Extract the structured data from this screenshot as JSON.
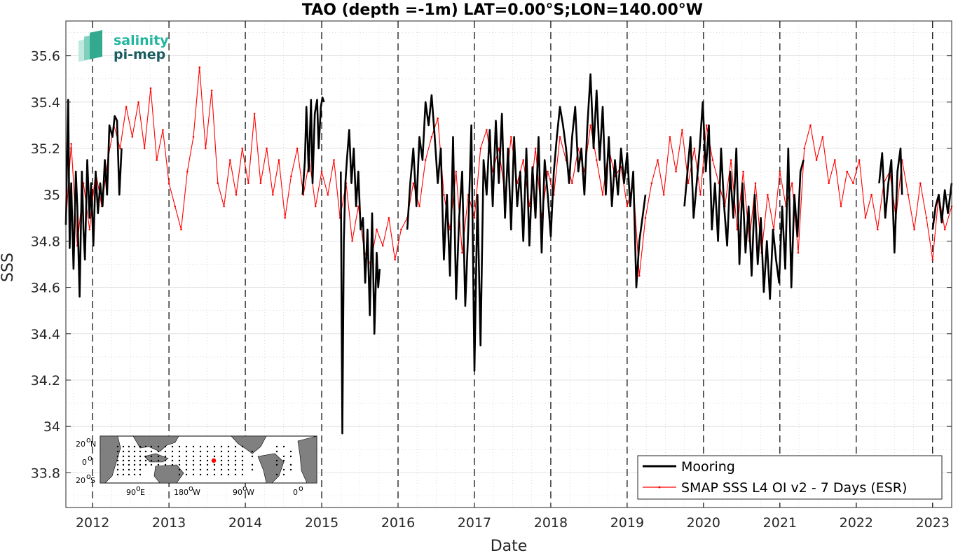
{
  "chart_data": {
    "type": "line",
    "title": "TAO (depth =-1m) LAT=0.00°S;LON=140.00°W",
    "xlabel": "Date",
    "ylabel": "SSS",
    "xlim": [
      2011.65,
      2023.25
    ],
    "ylim": [
      33.65,
      35.75
    ],
    "x_ticks": [
      "2012",
      "2013",
      "2014",
      "2015",
      "2016",
      "2017",
      "2018",
      "2019",
      "2020",
      "2021",
      "2022",
      "2023"
    ],
    "y_ticks": [
      "33.8",
      "34",
      "34.2",
      "34.4",
      "34.6",
      "34.8",
      "35",
      "35.2",
      "35.4",
      "35.6"
    ],
    "year_boundaries": [
      2012,
      2013,
      2014,
      2015,
      2016,
      2017,
      2018,
      2019,
      2020,
      2021,
      2022,
      2023
    ],
    "grid": true,
    "legend_position": "bottom-right",
    "colors": {
      "mooring": "#000000",
      "smap": "#ff0000"
    },
    "series": [
      {
        "name": "Mooring",
        "segments": [
          {
            "x": [
              2011.65,
              2011.68,
              2011.7,
              2011.72,
              2011.75,
              2011.78,
              2011.8,
              2011.83,
              2011.86,
              2011.88,
              2011.9,
              2011.93,
              2011.96,
              2011.98,
              2012.01,
              2012.04,
              2012.07,
              2012.1,
              2012.13,
              2012.16,
              2012.19,
              2012.22,
              2012.26,
              2012.29,
              2012.32,
              2012.35,
              2012.38
            ],
            "y": [
              34.87,
              35.41,
              34.77,
              35.05,
              34.68,
              35.1,
              34.95,
              34.56,
              35.1,
              34.85,
              34.72,
              35.15,
              34.9,
              35.05,
              34.78,
              35.1,
              34.92,
              35.05,
              34.95,
              35.15,
              35.0,
              35.3,
              35.25,
              35.34,
              35.32,
              35.0,
              35.2
            ]
          },
          {
            "x": [
              2014.75,
              2014.78,
              2014.8,
              2014.83,
              2014.86,
              2014.88,
              2014.91,
              2014.94,
              2014.96,
              2014.99,
              2015.01,
              2015.03
            ],
            "y": [
              35.0,
              35.15,
              35.38,
              35.1,
              35.41,
              35.05,
              35.35,
              35.41,
              35.2,
              35.38,
              35.42,
              35.4
            ]
          },
          {
            "x": [
              2015.25,
              2015.27,
              2015.29,
              2015.31,
              2015.33,
              2015.36,
              2015.39,
              2015.42,
              2015.45,
              2015.48,
              2015.51,
              2015.54,
              2015.57,
              2015.6,
              2015.63,
              2015.66,
              2015.69,
              2015.72,
              2015.74,
              2015.76
            ],
            "y": [
              35.1,
              33.97,
              34.8,
              35.05,
              35.15,
              35.28,
              35.05,
              35.2,
              34.95,
              35.1,
              34.85,
              34.9,
              34.62,
              34.85,
              34.48,
              34.92,
              34.4,
              34.75,
              34.6,
              34.68
            ]
          },
          {
            "x": [
              2016.12,
              2016.16,
              2016.2,
              2016.24,
              2016.28,
              2016.32,
              2016.36,
              2016.4,
              2016.44,
              2016.48,
              2016.52,
              2016.56,
              2016.6,
              2016.64,
              2016.68,
              2016.72,
              2016.76,
              2016.8,
              2016.84,
              2016.88,
              2016.92,
              2016.96,
              2017.0,
              2017.04,
              2017.08,
              2017.12,
              2017.16,
              2017.2,
              2017.24,
              2017.28,
              2017.32,
              2017.36,
              2017.4,
              2017.44,
              2017.48,
              2017.52,
              2017.56,
              2017.6,
              2017.64,
              2017.68,
              2017.72,
              2017.76,
              2017.8,
              2017.84,
              2017.88,
              2017.92,
              2017.96,
              2018.0,
              2018.04,
              2018.08,
              2018.12,
              2018.16,
              2018.2,
              2018.24,
              2018.28,
              2018.32,
              2018.36,
              2018.4,
              2018.44,
              2018.48,
              2018.52,
              2018.56,
              2018.6,
              2018.64,
              2018.68,
              2018.72,
              2018.76,
              2018.8,
              2018.84,
              2018.88,
              2018.92,
              2018.96,
              2019.0,
              2019.04,
              2019.08,
              2019.12,
              2019.16,
              2019.2,
              2019.24
            ],
            "y": [
              34.85,
              35.05,
              35.2,
              34.95,
              35.25,
              35.15,
              35.4,
              35.3,
              35.43,
              35.25,
              35.05,
              35.2,
              34.72,
              35.0,
              34.65,
              35.25,
              34.55,
              34.9,
              35.1,
              34.52,
              34.85,
              35.3,
              34.24,
              35.0,
              34.35,
              35.15,
              35.0,
              35.28,
              34.95,
              35.32,
              35.05,
              35.35,
              34.9,
              35.2,
              34.85,
              35.25,
              34.95,
              35.1,
              34.8,
              35.2,
              34.78,
              35.12,
              34.9,
              35.25,
              34.75,
              35.15,
              35.0,
              34.82,
              35.1,
              35.25,
              35.38,
              35.3,
              35.2,
              35.05,
              35.25,
              35.38,
              35.1,
              35.2,
              35.0,
              35.3,
              35.52,
              35.2,
              35.45,
              35.15,
              35.38,
              35.0,
              35.25,
              34.95,
              35.15,
              35.0,
              35.2,
              35.05,
              35.18,
              34.95,
              35.1,
              34.6,
              34.8,
              34.9,
              35.0
            ]
          },
          {
            "x": [
              2019.75,
              2019.79,
              2019.83,
              2019.87,
              2019.91,
              2019.95,
              2019.99,
              2020.03,
              2020.07,
              2020.11,
              2020.15,
              2020.19,
              2020.23,
              2020.27,
              2020.31,
              2020.35,
              2020.39,
              2020.43,
              2020.47,
              2020.51,
              2020.55,
              2020.59,
              2020.63,
              2020.67,
              2020.71,
              2020.75,
              2020.79,
              2020.83,
              2020.87,
              2020.91,
              2020.95,
              2020.99,
              2021.03,
              2021.07,
              2021.11,
              2021.15,
              2021.19,
              2021.23,
              2021.27,
              2021.31
            ],
            "y": [
              34.95,
              35.1,
              35.25,
              34.9,
              35.05,
              35.2,
              35.4,
              35.1,
              35.3,
              34.85,
              35.05,
              34.8,
              35.2,
              34.95,
              34.78,
              35.1,
              34.9,
              35.2,
              34.7,
              35.05,
              34.75,
              34.95,
              34.65,
              35.0,
              34.7,
              34.9,
              34.58,
              34.8,
              34.55,
              34.85,
              34.72,
              34.62,
              34.95,
              34.68,
              35.2,
              34.6,
              35.0,
              34.82,
              35.1,
              35.15
            ]
          },
          {
            "x": [
              2022.3,
              2022.34,
              2022.38,
              2022.42,
              2022.46,
              2022.5,
              2022.54,
              2022.58,
              2022.6
            ],
            "y": [
              35.05,
              35.18,
              34.9,
              35.05,
              35.15,
              34.75,
              35.1,
              35.2,
              35.0
            ]
          },
          {
            "x": [
              2023.0,
              2023.04,
              2023.08,
              2023.12,
              2023.16,
              2023.2,
              2023.25
            ],
            "y": [
              34.85,
              34.95,
              35.0,
              34.88,
              35.02,
              34.92,
              35.05
            ]
          }
        ]
      },
      {
        "name": "SMAP SSS L4 OI v2 - 7 Days (ESR)",
        "x": [
          2011.65,
          2011.72,
          2011.8,
          2011.88,
          2011.96,
          2012.04,
          2012.12,
          2012.2,
          2012.28,
          2012.36,
          2012.44,
          2012.52,
          2012.6,
          2012.68,
          2012.76,
          2012.84,
          2012.92,
          2013.0,
          2013.08,
          2013.16,
          2013.24,
          2013.32,
          2013.4,
          2013.48,
          2013.56,
          2013.64,
          2013.72,
          2013.8,
          2013.88,
          2013.96,
          2014.04,
          2014.12,
          2014.2,
          2014.28,
          2014.36,
          2014.44,
          2014.52,
          2014.6,
          2014.68,
          2014.76,
          2014.84,
          2014.92,
          2015.0,
          2015.08,
          2015.16,
          2015.24,
          2015.32,
          2015.4,
          2015.48,
          2015.56,
          2015.64,
          2015.72,
          2015.8,
          2015.88,
          2015.96,
          2016.04,
          2016.12,
          2016.2,
          2016.28,
          2016.36,
          2016.44,
          2016.52,
          2016.6,
          2016.68,
          2016.76,
          2016.84,
          2016.92,
          2017.0,
          2017.08,
          2017.16,
          2017.24,
          2017.32,
          2017.4,
          2017.48,
          2017.56,
          2017.64,
          2017.72,
          2017.8,
          2017.88,
          2017.96,
          2018.04,
          2018.12,
          2018.2,
          2018.28,
          2018.36,
          2018.44,
          2018.52,
          2018.6,
          2018.68,
          2018.76,
          2018.84,
          2018.92,
          2019.0,
          2019.08,
          2019.16,
          2019.24,
          2019.32,
          2019.4,
          2019.48,
          2019.56,
          2019.64,
          2019.72,
          2019.8,
          2019.88,
          2019.96,
          2020.04,
          2020.12,
          2020.2,
          2020.28,
          2020.36,
          2020.44,
          2020.52,
          2020.6,
          2020.68,
          2020.76,
          2020.84,
          2020.92,
          2021.0,
          2021.08,
          2021.16,
          2021.24,
          2021.32,
          2021.4,
          2021.48,
          2021.56,
          2021.64,
          2021.72,
          2021.8,
          2021.88,
          2021.96,
          2022.04,
          2022.12,
          2022.2,
          2022.28,
          2022.36,
          2022.44,
          2022.52,
          2022.6,
          2022.68,
          2022.76,
          2022.84,
          2022.92,
          2023.0,
          2023.08,
          2023.16,
          2023.25
        ],
        "y": [
          34.88,
          35.22,
          34.78,
          35.05,
          34.85,
          35.1,
          34.95,
          35.15,
          35.3,
          35.2,
          35.38,
          35.25,
          35.4,
          35.2,
          35.46,
          35.15,
          35.28,
          35.05,
          34.95,
          34.85,
          35.1,
          35.25,
          35.55,
          35.2,
          35.45,
          35.05,
          34.95,
          35.15,
          35.0,
          35.2,
          35.05,
          35.35,
          35.05,
          35.2,
          35.0,
          35.15,
          34.9,
          35.08,
          35.2,
          35.0,
          35.15,
          34.95,
          35.1,
          35.0,
          35.15,
          34.9,
          35.05,
          34.8,
          34.95,
          34.75,
          34.7,
          34.85,
          34.78,
          34.9,
          34.72,
          34.85,
          34.9,
          35.05,
          34.95,
          35.15,
          35.25,
          35.33,
          35.0,
          34.85,
          35.1,
          34.75,
          35.0,
          34.9,
          35.2,
          35.28,
          35.1,
          35.2,
          35.0,
          35.25,
          35.05,
          35.15,
          34.95,
          35.2,
          34.9,
          35.1,
          35.0,
          35.25,
          35.15,
          35.05,
          35.2,
          35.1,
          35.3,
          35.15,
          35.0,
          35.2,
          35.08,
          35.12,
          34.95,
          35.05,
          34.65,
          34.9,
          35.05,
          35.15,
          35.0,
          35.25,
          35.1,
          35.28,
          35.05,
          35.2,
          35.0,
          35.3,
          35.15,
          35.05,
          34.95,
          35.15,
          34.85,
          35.1,
          34.8,
          35.05,
          34.75,
          35.0,
          34.85,
          35.1,
          34.95,
          35.05,
          34.75,
          35.2,
          35.3,
          35.15,
          35.25,
          35.05,
          35.15,
          34.95,
          35.1,
          35.05,
          35.15,
          34.9,
          35.0,
          34.85,
          35.05,
          35.1,
          34.9,
          35.15,
          35.0,
          34.85,
          35.05,
          34.9,
          34.72,
          35.0,
          34.85,
          34.95
        ]
      }
    ]
  },
  "logo": {
    "line1": "salinity",
    "line2": "pi-mep"
  },
  "inset_map": {
    "lat_labels": [
      "20",
      "N",
      "0",
      "20",
      "S"
    ],
    "lon_labels": [
      "90",
      "E",
      "180",
      "W",
      "90",
      "W",
      "0"
    ],
    "degree_mark": "o",
    "marker_color": "#ff0000"
  }
}
